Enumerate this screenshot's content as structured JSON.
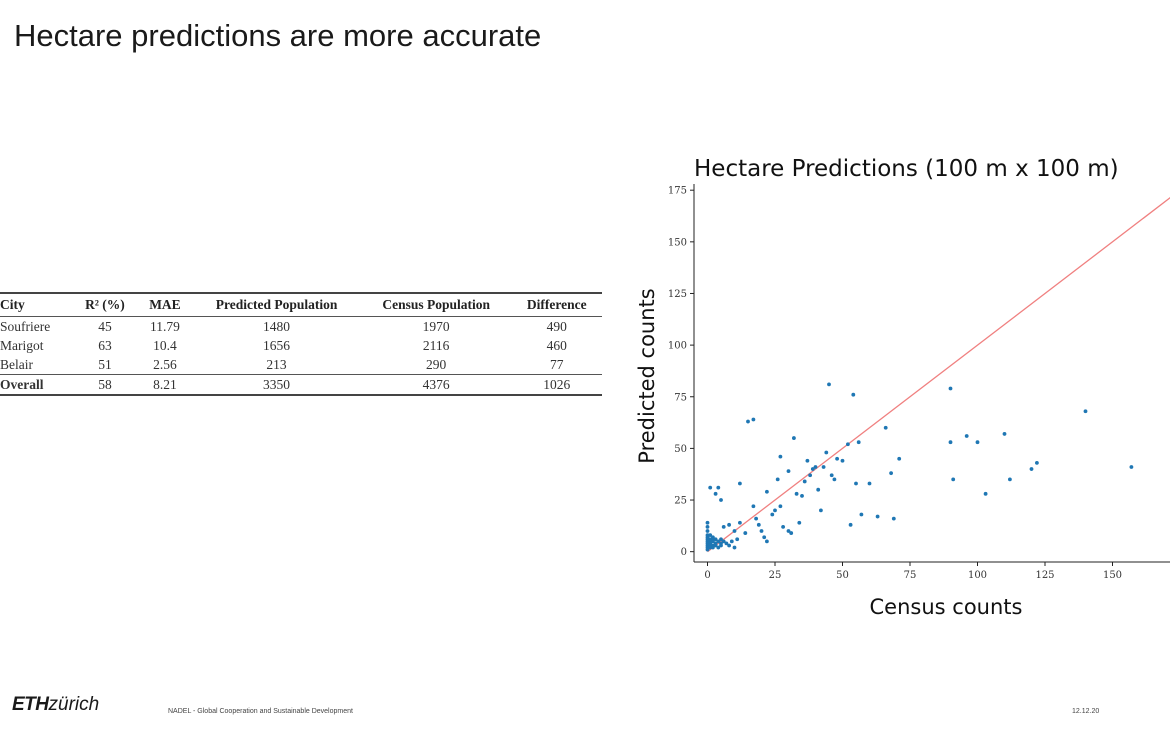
{
  "slide": {
    "title": "Hectare predictions are more accurate"
  },
  "table": {
    "headers": [
      "City",
      "R² (%)",
      "MAE",
      "Predicted Population",
      "Census Population",
      "Difference"
    ],
    "rows": [
      [
        "Soufriere",
        "45",
        "11.79",
        "1480",
        "1970",
        "490"
      ],
      [
        "Marigot",
        "63",
        "10.4",
        "1656",
        "2116",
        "460"
      ],
      [
        "Belair",
        "51",
        "2.56",
        "213",
        "290",
        "77"
      ]
    ],
    "overall": [
      "Overall",
      "58",
      "8.21",
      "3350",
      "4376",
      "1026"
    ]
  },
  "chart_data": {
    "type": "scatter",
    "title": "Hectare Predictions (100 m x 100 m)",
    "xlabel": "Census counts",
    "ylabel": "Predicted counts",
    "xlim": [
      -5,
      175
    ],
    "ylim": [
      -5,
      178
    ],
    "xticks": [
      0,
      25,
      50,
      75,
      100,
      125,
      150
    ],
    "yticks": [
      0,
      25,
      50,
      75,
      100,
      125,
      150,
      175
    ],
    "grid": false,
    "point_color": "#1f77b4",
    "line_color": "#f08080",
    "reference_line": {
      "x": [
        0,
        178
      ],
      "y": [
        0,
        178
      ]
    },
    "points": [
      [
        0,
        1
      ],
      [
        0,
        2
      ],
      [
        0,
        3
      ],
      [
        0,
        4
      ],
      [
        0,
        5
      ],
      [
        0,
        6
      ],
      [
        0,
        7
      ],
      [
        0,
        8
      ],
      [
        0,
        10
      ],
      [
        0,
        12
      ],
      [
        0,
        14
      ],
      [
        1,
        2
      ],
      [
        1,
        3
      ],
      [
        1,
        4
      ],
      [
        1,
        5
      ],
      [
        1,
        6
      ],
      [
        1,
        8
      ],
      [
        2,
        2
      ],
      [
        2,
        3
      ],
      [
        2,
        5
      ],
      [
        2,
        6
      ],
      [
        2,
        7
      ],
      [
        3,
        3
      ],
      [
        3,
        4
      ],
      [
        3,
        6
      ],
      [
        4,
        2
      ],
      [
        4,
        5
      ],
      [
        5,
        3
      ],
      [
        5,
        4
      ],
      [
        5,
        6
      ],
      [
        6,
        5
      ],
      [
        7,
        4
      ],
      [
        8,
        3
      ],
      [
        9,
        5
      ],
      [
        10,
        2
      ],
      [
        11,
        6
      ],
      [
        1,
        31
      ],
      [
        4,
        31
      ],
      [
        5,
        25
      ],
      [
        3,
        28
      ],
      [
        6,
        12
      ],
      [
        8,
        13
      ],
      [
        10,
        10
      ],
      [
        12,
        14
      ],
      [
        14,
        9
      ],
      [
        15,
        63
      ],
      [
        17,
        64
      ],
      [
        17,
        22
      ],
      [
        18,
        16
      ],
      [
        19,
        13
      ],
      [
        20,
        10
      ],
      [
        21,
        7
      ],
      [
        22,
        5
      ],
      [
        24,
        18
      ],
      [
        25,
        20
      ],
      [
        26,
        35
      ],
      [
        27,
        22
      ],
      [
        28,
        12
      ],
      [
        30,
        10
      ],
      [
        31,
        9
      ],
      [
        32,
        55
      ],
      [
        33,
        28
      ],
      [
        34,
        14
      ],
      [
        35,
        27
      ],
      [
        36,
        34
      ],
      [
        37,
        44
      ],
      [
        38,
        37
      ],
      [
        39,
        40
      ],
      [
        40,
        41
      ],
      [
        41,
        30
      ],
      [
        42,
        20
      ],
      [
        43,
        41
      ],
      [
        44,
        48
      ],
      [
        45,
        81
      ],
      [
        46,
        37
      ],
      [
        47,
        35
      ],
      [
        48,
        45
      ],
      [
        50,
        44
      ],
      [
        52,
        52
      ],
      [
        53,
        13
      ],
      [
        54,
        76
      ],
      [
        55,
        33
      ],
      [
        56,
        53
      ],
      [
        57,
        18
      ],
      [
        60,
        33
      ],
      [
        63,
        17
      ],
      [
        66,
        60
      ],
      [
        68,
        38
      ],
      [
        69,
        16
      ],
      [
        71,
        45
      ],
      [
        90,
        79
      ],
      [
        90,
        53
      ],
      [
        91,
        35
      ],
      [
        96,
        56
      ],
      [
        100,
        53
      ],
      [
        103,
        28
      ],
      [
        110,
        57
      ],
      [
        112,
        35
      ],
      [
        120,
        40
      ],
      [
        122,
        43
      ],
      [
        140,
        68
      ],
      [
        157,
        41
      ],
      [
        12,
        33
      ],
      [
        22,
        29
      ],
      [
        27,
        46
      ],
      [
        30,
        39
      ]
    ]
  },
  "footer": {
    "logo_eth": "ETH",
    "logo_zurich": "zürich",
    "text": "NADEL - Global Cooperation and Sustainable Development",
    "date": "12.12.20"
  }
}
